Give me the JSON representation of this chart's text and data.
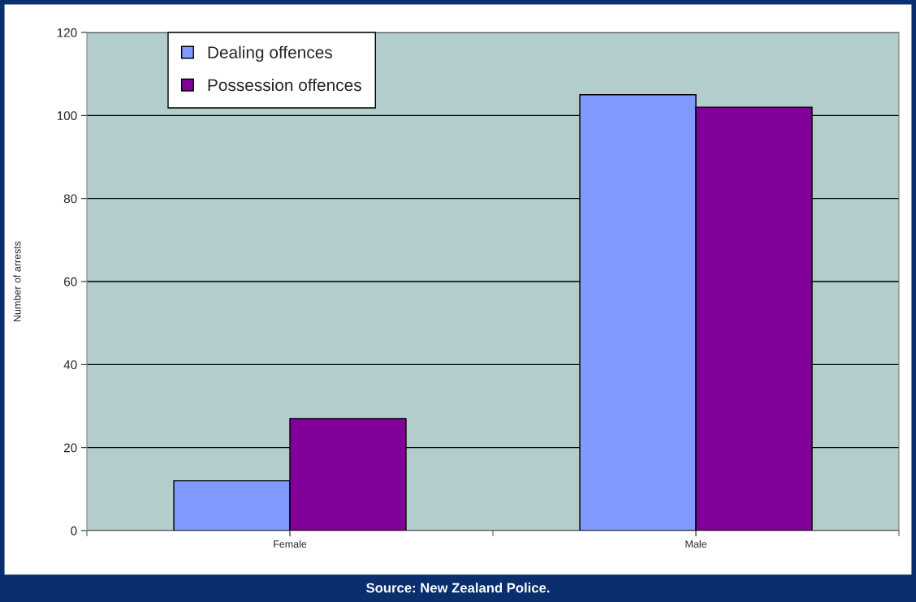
{
  "chart_data": {
    "type": "bar",
    "ylabel": "Number of arrests",
    "categories": [
      "Female",
      "Male"
    ],
    "series": [
      {
        "name": "Dealing offences",
        "color": "#8099ff",
        "values": [
          12,
          105
        ]
      },
      {
        "name": "Possession offences",
        "color": "#800099",
        "values": [
          27,
          102
        ]
      }
    ],
    "ylim": [
      0,
      120
    ],
    "yticks": [
      0,
      20,
      40,
      60,
      80,
      100,
      120
    ],
    "grid": "y",
    "legend": "top left",
    "annotations": [
      "Source: New Zealand Police."
    ]
  }
}
